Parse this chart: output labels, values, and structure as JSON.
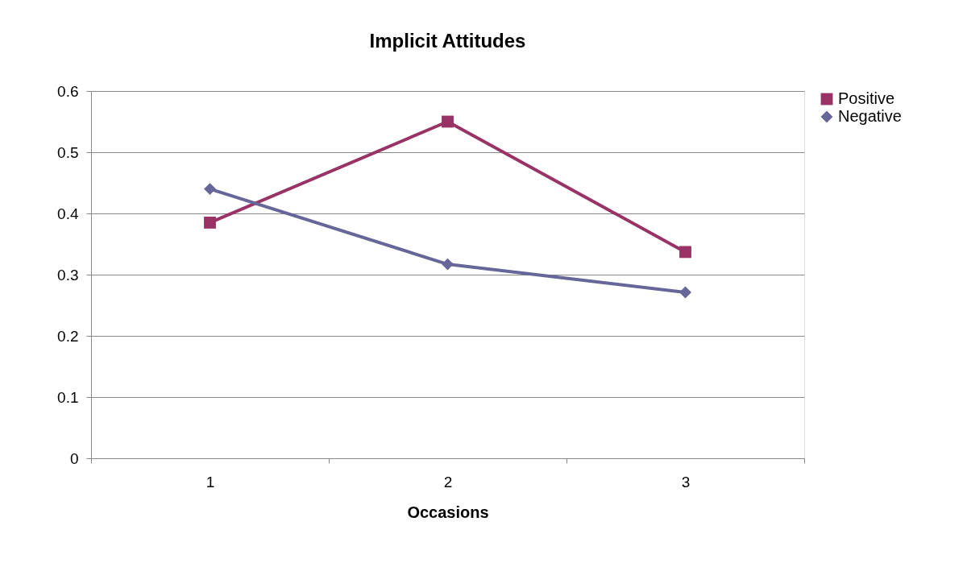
{
  "chart_data": {
    "type": "line",
    "title": "Implicit Attitudes",
    "xlabel": "Occasions",
    "categories": [
      "1",
      "2",
      "3"
    ],
    "series": [
      {
        "name": "Positive",
        "color": "#993366",
        "marker": "square",
        "values": [
          0.385,
          0.55,
          0.337
        ]
      },
      {
        "name": "Negative",
        "color": "#666699",
        "marker": "diamond",
        "values": [
          0.44,
          0.317,
          0.271
        ]
      }
    ],
    "ylim": [
      0,
      0.6
    ],
    "yticks": [
      0,
      0.1,
      0.2,
      0.3,
      0.4,
      0.5,
      0.6
    ],
    "grid": "y",
    "legend": "right",
    "line_style": "solid"
  }
}
